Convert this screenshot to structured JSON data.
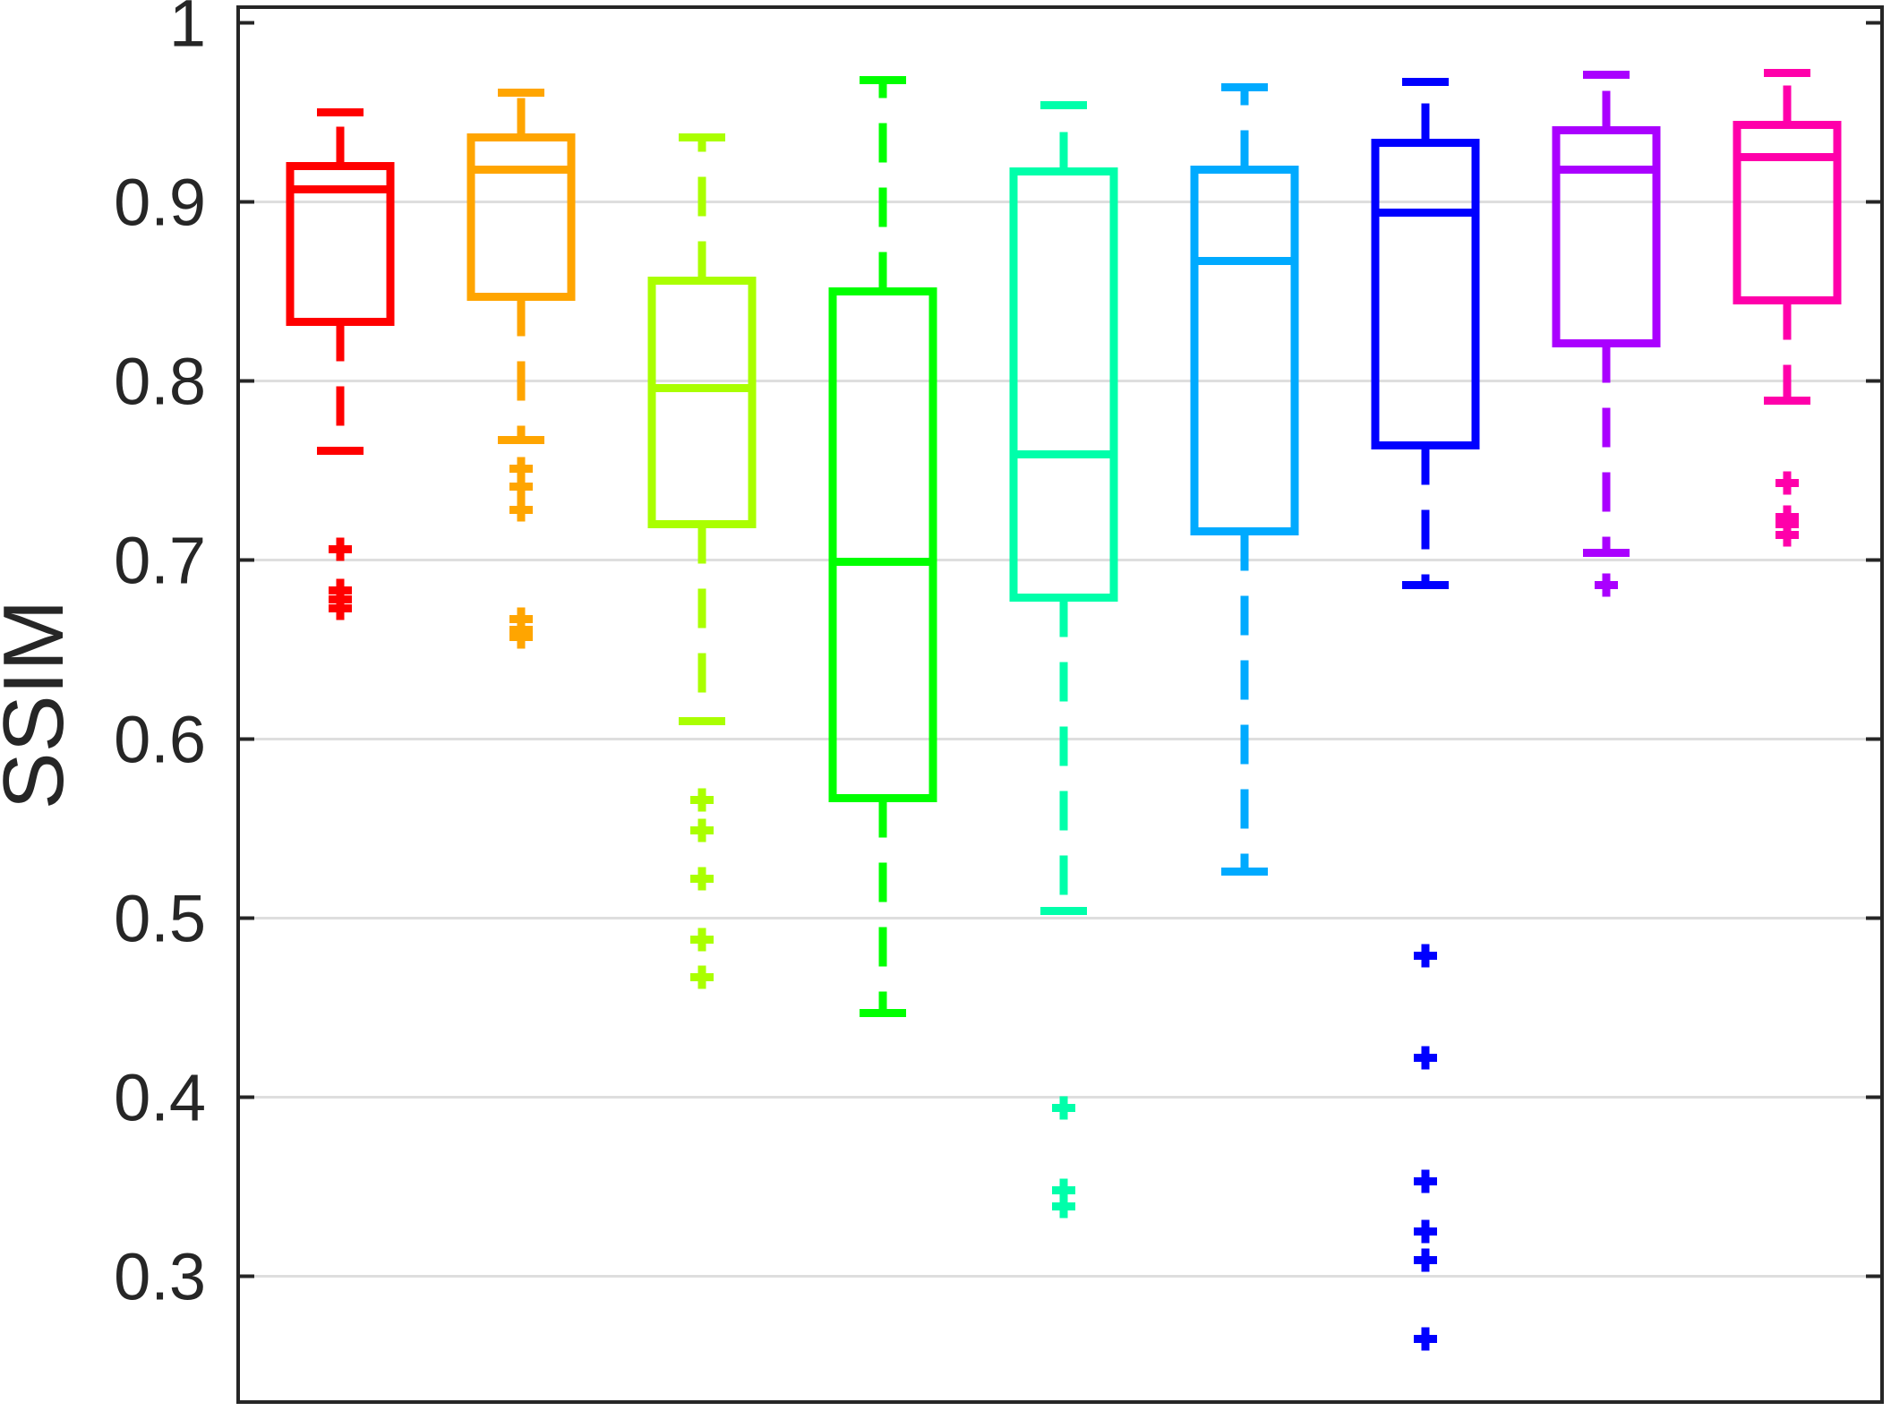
{
  "chart_data": {
    "type": "boxplot",
    "ylabel": "SSIM",
    "xlabel": "",
    "ylim": [
      0.23,
      1.0
    ],
    "yticks": [
      {
        "value": 0.3,
        "label": "0.3"
      },
      {
        "value": 0.4,
        "label": "0.4"
      },
      {
        "value": 0.5,
        "label": "0.5"
      },
      {
        "value": 0.6,
        "label": "0.6"
      },
      {
        "value": 0.7,
        "label": "0.7"
      },
      {
        "value": 0.8,
        "label": "0.8"
      },
      {
        "value": 0.9,
        "label": "0.9"
      },
      {
        "value": 1.0,
        "label": "1"
      }
    ],
    "grid": "horizontal",
    "series": [
      {
        "color": "#ff0000",
        "q1": 0.833,
        "median": 0.907,
        "q3": 0.92,
        "whisker_low": 0.761,
        "whisker_high": 0.95,
        "outliers": [
          0.706,
          0.683,
          0.678,
          0.673
        ]
      },
      {
        "color": "#ffa500",
        "q1": 0.847,
        "median": 0.918,
        "q3": 0.936,
        "whisker_low": 0.767,
        "whisker_high": 0.961,
        "outliers": [
          0.751,
          0.741,
          0.728,
          0.667,
          0.661,
          0.657
        ]
      },
      {
        "color": "#aaff00",
        "q1": 0.72,
        "median": 0.796,
        "q3": 0.856,
        "whisker_low": 0.61,
        "whisker_high": 0.936,
        "outliers": [
          0.566,
          0.549,
          0.522,
          0.488,
          0.467
        ]
      },
      {
        "color": "#00ff00",
        "q1": 0.567,
        "median": 0.699,
        "q3": 0.85,
        "whisker_low": 0.447,
        "whisker_high": 0.968,
        "outliers": []
      },
      {
        "color": "#00ffaa",
        "q1": 0.679,
        "median": 0.759,
        "q3": 0.917,
        "whisker_low": 0.504,
        "whisker_high": 0.954,
        "outliers": [
          0.394,
          0.348,
          0.339
        ]
      },
      {
        "color": "#00aaff",
        "q1": 0.716,
        "median": 0.867,
        "q3": 0.918,
        "whisker_low": 0.526,
        "whisker_high": 0.964,
        "outliers": []
      },
      {
        "color": "#0000ff",
        "q1": 0.764,
        "median": 0.894,
        "q3": 0.933,
        "whisker_low": 0.686,
        "whisker_high": 0.967,
        "outliers": [
          0.479,
          0.422,
          0.353,
          0.325,
          0.309,
          0.265
        ]
      },
      {
        "color": "#aa00ff",
        "q1": 0.821,
        "median": 0.918,
        "q3": 0.94,
        "whisker_low": 0.704,
        "whisker_high": 0.971,
        "outliers": [
          0.686
        ]
      },
      {
        "color": "#ff00aa",
        "q1": 0.845,
        "median": 0.925,
        "q3": 0.943,
        "whisker_low": 0.789,
        "whisker_high": 0.972,
        "outliers": [
          0.743,
          0.724,
          0.72,
          0.714
        ]
      }
    ]
  }
}
